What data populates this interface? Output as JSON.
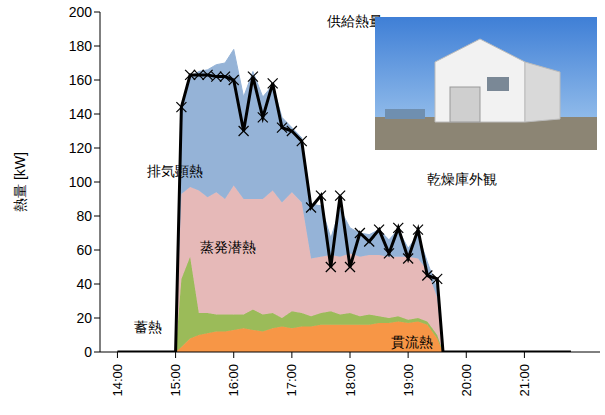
{
  "chart_data": {
    "type": "area",
    "stacked": true,
    "ylabel": "熱量 [kW]",
    "annotations": [
      "乾燥庫外観"
    ],
    "x": [
      14.0,
      15.0,
      15.1,
      15.25,
      15.4,
      15.55,
      15.7,
      15.85,
      16.0,
      16.17,
      16.33,
      16.5,
      16.67,
      16.83,
      17.0,
      17.17,
      17.33,
      17.5,
      17.67,
      17.83,
      18.0,
      18.17,
      18.33,
      18.5,
      18.67,
      18.83,
      19.0,
      19.17,
      19.33,
      19.5,
      19.6,
      21.8
    ],
    "series": [
      {
        "name": "貫流熱",
        "type": "area",
        "color": "#f79646",
        "values": [
          0,
          0,
          3,
          8,
          10,
          11,
          12,
          12,
          13,
          14,
          13,
          12,
          14,
          15,
          14,
          15,
          15,
          16,
          16,
          16,
          16,
          16,
          16,
          17,
          17,
          18,
          17,
          18,
          16,
          8,
          0,
          0
        ]
      },
      {
        "name": "蓄熱",
        "type": "area",
        "color": "#9bbb59",
        "values": [
          0,
          0,
          40,
          48,
          13,
          12,
          10,
          10,
          9,
          8,
          12,
          10,
          9,
          5,
          10,
          8,
          6,
          7,
          8,
          6,
          7,
          5,
          6,
          4,
          3,
          3,
          2,
          2,
          2,
          2,
          0,
          0
        ]
      },
      {
        "name": "蒸発潜熱",
        "type": "area",
        "color": "#e6b9b8",
        "values": [
          0,
          0,
          50,
          41,
          72,
          68,
          72,
          68,
          76,
          68,
          65,
          68,
          72,
          68,
          70,
          65,
          34,
          33,
          33,
          34,
          35,
          35,
          35,
          36,
          36,
          35,
          37,
          35,
          30,
          22,
          0,
          0
        ]
      },
      {
        "name": "排気顕熱",
        "type": "area",
        "color": "#95b3d7",
        "values": [
          0,
          0,
          50,
          65,
          70,
          75,
          75,
          80,
          80,
          60,
          75,
          60,
          62,
          50,
          38,
          38,
          32,
          30,
          10,
          28,
          15,
          14,
          12,
          15,
          10,
          16,
          5,
          14,
          5,
          5,
          0,
          0
        ]
      },
      {
        "name": "供給熱量",
        "type": "line",
        "color": "#000000",
        "marker": "x",
        "values": [
          0,
          0,
          144,
          163,
          163,
          163,
          162,
          162,
          160,
          130,
          162,
          138,
          158,
          132,
          130,
          124,
          85,
          92,
          50,
          92,
          50,
          70,
          65,
          72,
          58,
          73,
          55,
          72,
          45,
          43,
          0,
          0
        ]
      }
    ],
    "xlim": [
      13.7,
      22.3
    ],
    "xticks": [
      {
        "value": 14,
        "label": "14:00"
      },
      {
        "value": 15,
        "label": "15:00"
      },
      {
        "value": 16,
        "label": "16:00"
      },
      {
        "value": 17,
        "label": "17:00"
      },
      {
        "value": 18,
        "label": "18:00"
      },
      {
        "value": 19,
        "label": "19:00"
      },
      {
        "value": 20,
        "label": "20:00"
      },
      {
        "value": 21,
        "label": "21:00"
      }
    ],
    "ylim": [
      0,
      200
    ],
    "yticks": [
      0,
      20,
      40,
      60,
      80,
      100,
      120,
      140,
      160,
      180,
      200
    ],
    "grid": false
  }
}
